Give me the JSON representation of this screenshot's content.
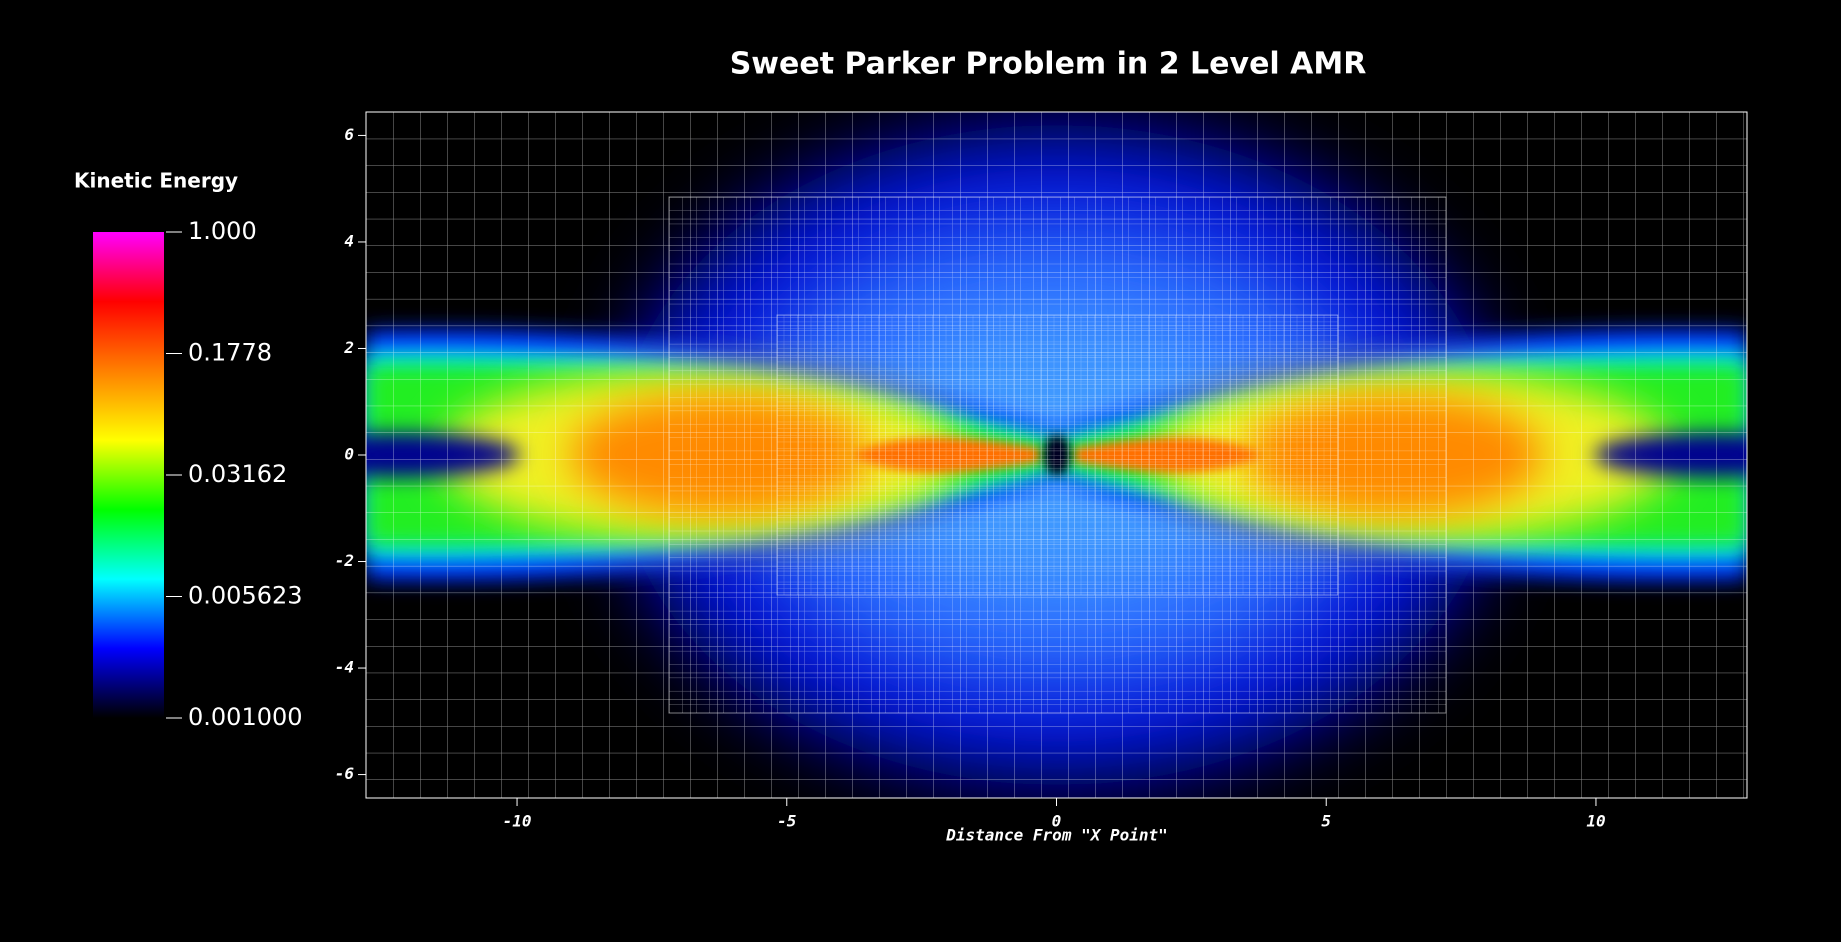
{
  "chart_data": {
    "type": "heatmap",
    "title": "Sweet Parker Problem in 2 Level AMR",
    "xlabel": "Distance From \"X Point\"",
    "xlim": [
      -12.8,
      12.8
    ],
    "xticks": [
      -10,
      -5,
      0,
      5,
      10
    ],
    "ylim": [
      -6.44,
      6.44
    ],
    "yticks": [
      -6,
      -4,
      -2,
      0,
      2,
      4,
      6
    ],
    "grid": true,
    "colorbar": {
      "title": "Kinetic Energy",
      "log_scale": true,
      "clim": [
        0.001,
        1
      ],
      "ticks": [
        {
          "value": 1,
          "label": "1.000"
        },
        0.1778,
        0.03162,
        0.005623,
        {
          "value": 0.001,
          "label": "0.001000"
        }
      ],
      "colormap": [
        "#000000",
        "#0000ff",
        "#00ffff",
        "#00ff00",
        "#ffff00",
        "#ff8000",
        "#ff0000",
        "#ff00ff"
      ]
    }
  }
}
